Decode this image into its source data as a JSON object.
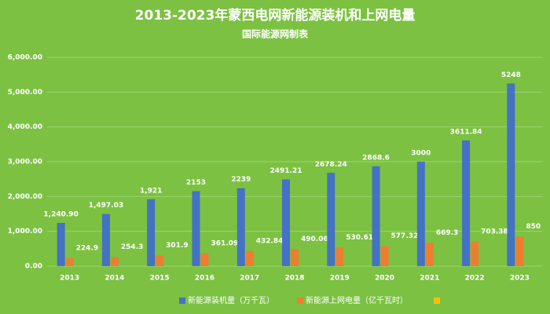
{
  "chart_data": {
    "type": "bar",
    "title": "2013-2023年蒙西电网新能源装机和上网电量",
    "subtitle": "国际能源网制表",
    "categories": [
      "2013",
      "2014",
      "2015",
      "2016",
      "2017",
      "2018",
      "2019",
      "2020",
      "2021",
      "2022",
      "2023"
    ],
    "series": [
      {
        "name": "新能源装机量（万千瓦）",
        "color": "#4472c4",
        "values": [
          1240.9,
          1497.03,
          1921,
          2153,
          2239,
          2491.21,
          2678.24,
          2868.6,
          3000,
          3611.84,
          5248
        ],
        "value_labels": [
          "1,240.90",
          "1,497.03",
          "1,921",
          "2153",
          "2239",
          "2491.21",
          "2678.24",
          "2868.6",
          "3000",
          "3611.84",
          "5248"
        ]
      },
      {
        "name": "新能源上网电量（亿千瓦时）",
        "color": "#ed7d31",
        "values": [
          224.9,
          254.3,
          301.9,
          361.09,
          432.84,
          490.06,
          530.61,
          577.32,
          669.3,
          703.38,
          850
        ]
      }
    ],
    "ylim": [
      0,
      6000
    ],
    "yticks": [
      {
        "value": 0,
        "label": "0.00"
      },
      {
        "value": 1000,
        "label": "1,000.00"
      },
      {
        "value": 2000,
        "label": "2,000.00"
      },
      {
        "value": 3000,
        "label": "3,000.00"
      },
      {
        "value": 4000,
        "label": "4,000.00"
      },
      {
        "value": 5000,
        "label": "5,000.00"
      },
      {
        "value": 6000,
        "label": "6,000.00"
      }
    ],
    "grid": true
  }
}
